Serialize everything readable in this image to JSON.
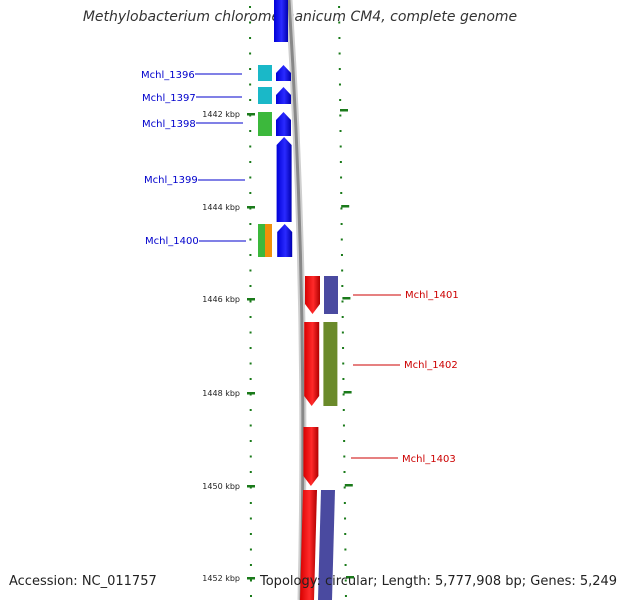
{
  "title": "Methylobacterium chloromethanicum CM4, complete genome",
  "accession": "Accession: NC_011757",
  "topology": "Topology: circular; Length: 5,777,908 bp; Genes: 5,249",
  "colors": {
    "forward_label": "#0000cc",
    "reverse_label": "#cc0000",
    "tick": "#1a7a1a",
    "backbone": "#888888"
  },
  "kbp_ticks": [
    {
      "label": "1442 kbp"
    },
    {
      "label": "1444 kbp"
    },
    {
      "label": "1446 kbp"
    },
    {
      "label": "1448 kbp"
    },
    {
      "label": "1450 kbp"
    },
    {
      "label": "1452 kbp"
    }
  ],
  "genes": [
    {
      "label": "Mchl_1396",
      "strand": "forward",
      "cog_colors": [
        "#1ab8c8"
      ]
    },
    {
      "label": "Mchl_1397",
      "strand": "forward",
      "cog_colors": [
        "#1ab8c8"
      ]
    },
    {
      "label": "Mchl_1398",
      "strand": "forward",
      "cog_colors": [
        "#3cb83c"
      ]
    },
    {
      "label": "Mchl_1399",
      "strand": "forward",
      "cog_colors": []
    },
    {
      "label": "Mchl_1400",
      "strand": "forward",
      "cog_colors": [
        "#3cb83c",
        "#f0900a"
      ]
    },
    {
      "label": "Mchl_1401",
      "strand": "reverse",
      "cog_colors": [
        "#4a4aa0"
      ]
    },
    {
      "label": "Mchl_1402",
      "strand": "reverse",
      "cog_colors": [
        "#6a8a2a"
      ]
    },
    {
      "label": "Mchl_1403",
      "strand": "reverse",
      "cog_colors": []
    }
  ]
}
